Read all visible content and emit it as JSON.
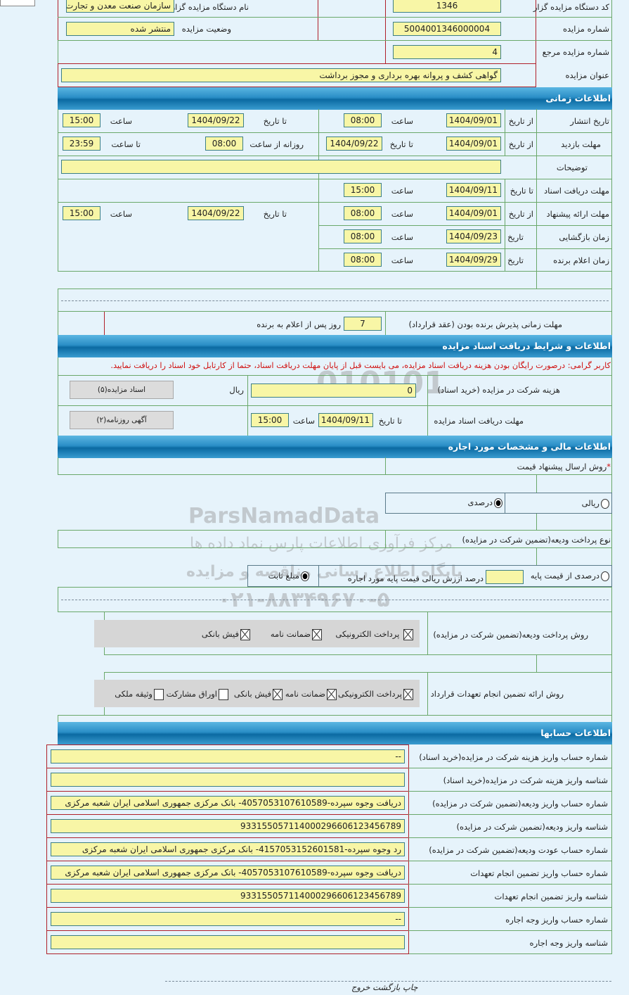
{
  "top": {
    "org_code_label": "کد دستگاه مزایده گزار",
    "org_code": "1346",
    "org_name_label": "نام دستگاه مزایده گزار",
    "org_name": "سازمان صنعت معدن و تجارت",
    "auction_no_label": "شماره مزایده",
    "auction_no": "5004001346000004",
    "status_label": "وضعیت مزایده",
    "status": "منتشر شده",
    "ref_no_label": "شماره مزایده مرجع",
    "ref_no": "4",
    "title_label": "عنوان مزایده",
    "title": "گواهی کشف و پروانه بهره برداری و مجوز برداشت"
  },
  "time": {
    "header": "اطلاعات زمانی",
    "from_date": "از تاریخ",
    "to_date": "تا تاریخ",
    "hour": "ساعت",
    "to_hour": "تا ساعت",
    "daily_from_hour": "روزانه از ساعت",
    "date": "تاریخ",
    "publish": {
      "label": "تاریخ انتشار",
      "from": "1404/09/01",
      "from_time": "08:00",
      "to": "1404/09/22",
      "to_time": "15:00"
    },
    "visit": {
      "label": "مهلت بازدید",
      "from": "1404/09/01",
      "to": "1404/09/22",
      "daily_from": "08:00",
      "to_time": "23:59"
    },
    "notes": {
      "label": "توضیحات",
      "value": ""
    },
    "doc_deadline": {
      "label": "مهلت دریافت اسناد",
      "to": "1404/09/11",
      "time": "15:00"
    },
    "offer": {
      "label": "مهلت ارائه پیشنهاد",
      "from": "1404/09/01",
      "from_time": "08:00",
      "to": "1404/09/22",
      "to_time": "15:00"
    },
    "opening": {
      "label": "زمان بازگشایی",
      "date": "1404/09/23",
      "time": "08:00"
    },
    "winner": {
      "label": "زمان اعلام برنده",
      "date": "1404/09/29",
      "time": "08:00"
    },
    "acceptance": {
      "label": "مهلت زمانی پذیرش برنده بودن (عقد قرارداد)",
      "days": "7",
      "suffix": "روز پس از اعلام به برنده"
    }
  },
  "docs": {
    "header": "اطلاعات و شرایط دریافت اسناد مزایده",
    "warning": "کاربر گرامی: درصورت رایگان بودن هزینه دریافت اسناد مزایده، می بایست قبل از پایان مهلت دریافت اسناد، حتما از کارتابل خود اسناد را دریافت نمایید.",
    "warning_color": "#d01010",
    "fee_label": "هزینه شرکت در مزایده (خرید اسناد)",
    "fee": "0",
    "currency": "ریال",
    "docs_button": "اسناد مزایده(۵)",
    "deadline_label": "مهلت دریافت اسناد مزایده",
    "to_date": "تا تاریخ",
    "date": "1404/09/11",
    "hour": "ساعت",
    "time": "15:00",
    "news_button": "آگهی روزنامه(۲)"
  },
  "finance": {
    "header": "اطلاعات مالی و مشخصات مورد اجاره",
    "required_mark": "*",
    "offer_method_label": "روش ارسال پیشنهاد قیمت",
    "radio_rial": "ریالی",
    "radio_percent": "درصدی",
    "offer_selected": "درصدی",
    "deposit_type_label": "نوع پرداخت ودیعه(تضمین شرکت در مزایده)",
    "base_percent": "درصدی از قیمت پایه",
    "percent_text": "درصد ارزش ریالی قیمت پایه مورد اجاره",
    "percent_value": "",
    "fixed_amount": "مبلغ ثابت",
    "deposit_selected": "مبلغ ثابت",
    "deposit_method_label": "روش پرداخت ودیعه(تضمین شرکت در مزایده)",
    "deposit_methods": [
      {
        "label": "پرداخت الکترونیکی",
        "checked": true
      },
      {
        "label": "ضمانت نامه",
        "checked": true
      },
      {
        "label": "فیش بانکی",
        "checked": true
      }
    ],
    "guarantee_label": "روش ارائه تضمین انجام تعهدات قرارداد",
    "guarantee_methods": [
      {
        "label": "پرداخت الکترونیکی",
        "checked": true
      },
      {
        "label": "ضمانت نامه",
        "checked": true
      },
      {
        "label": "فیش بانکی",
        "checked": true
      },
      {
        "label": "اوراق مشارکت",
        "checked": false
      },
      {
        "label": "وثیقه ملکی",
        "checked": false
      }
    ]
  },
  "accounts": {
    "header": "اطلاعات حسابها",
    "rows": [
      {
        "label": "شماره حساب واریز هزینه شرکت در مزایده(خرید اسناد)",
        "value": "--"
      },
      {
        "label": "شناسه واریز هزینه شرکت در مزایده(خرید اسناد)",
        "value": ""
      },
      {
        "label": "شماره حساب واریز ودیعه(تضمین شرکت در مزایده)",
        "value": "دریافت وجوه سپرده-4057053107610589- بانک مرکزی جمهوری اسلامی ایران شعبه مرکزی"
      },
      {
        "label": "شناسه واریز ودیعه(تضمین شرکت در مزایده)",
        "value": "933155057114000296606123456789"
      },
      {
        "label": "شماره حساب عودت ودیعه(تضمین شرکت در مزایده)",
        "value": "رد وجوه سپرده-4157053152601581- بانک مرکزی جمهوری اسلامی ایران شعبه مرکزی"
      },
      {
        "label": "شماره حساب واریز تضمین انجام تعهدات",
        "value": "دریافت وجوه سپرده-4057053107610589- بانک مرکزی جمهوری اسلامی ایران شعبه مرکزی"
      },
      {
        "label": "شناسه واریز تضمین انجام تعهدات",
        "value": "933155057114000296606123456789"
      },
      {
        "label": "شماره حساب واریز وجه اجاره",
        "value": "--"
      },
      {
        "label": "شناسه واریز وجه اجاره",
        "value": ""
      }
    ]
  },
  "footer": {
    "print": "چاپ",
    "back": "بازگشت",
    "exit": "خروج"
  },
  "watermark": {
    "brand": "ParsNamadData",
    "line1": "مرکز فرآوری اطلاعات پارس نماد داده ها",
    "line2": "پایگاه اطلاع رسانی مناقصه و مزایده",
    "phone": "۰۲۱-۸۸۳۴۹۶۷۰-۵"
  }
}
